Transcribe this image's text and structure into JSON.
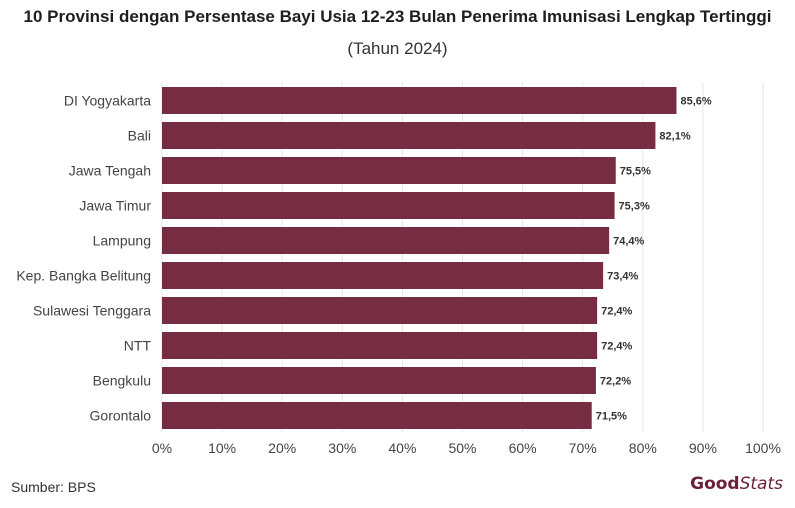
{
  "chart_data": {
    "type": "bar",
    "orientation": "horizontal",
    "title": "10 Provinsi dengan Persentase Bayi Usia 12-23 Bulan Penerima Imunisasi Lengkap Tertinggi",
    "subtitle": "(Tahun 2024)",
    "categories": [
      "DI Yogyakarta",
      "Bali",
      "Jawa Tengah",
      "Jawa Timur",
      "Lampung",
      "Kep. Bangka Belitung",
      "Sulawesi Tenggara",
      "NTT",
      "Bengkulu",
      "Gorontalo"
    ],
    "values": [
      85.6,
      82.1,
      75.5,
      75.3,
      74.4,
      73.4,
      72.4,
      72.4,
      72.2,
      71.5
    ],
    "value_labels": [
      "85,6%",
      "82,1%",
      "75,5%",
      "75,3%",
      "74,4%",
      "73,4%",
      "72,4%",
      "72,4%",
      "72,2%",
      "71,5%"
    ],
    "xlim": [
      0,
      100
    ],
    "x_ticks": [
      0,
      10,
      20,
      30,
      40,
      50,
      60,
      70,
      80,
      90,
      100
    ],
    "x_tick_labels": [
      "0%",
      "10%",
      "20%",
      "30%",
      "40%",
      "50%",
      "60%",
      "70%",
      "80%",
      "90%",
      "100%"
    ],
    "grid": true,
    "bar_color": "#772d41"
  },
  "footer": {
    "source": "Sumber: BPS",
    "logo_bold": "Good",
    "logo_light": "Stats"
  }
}
